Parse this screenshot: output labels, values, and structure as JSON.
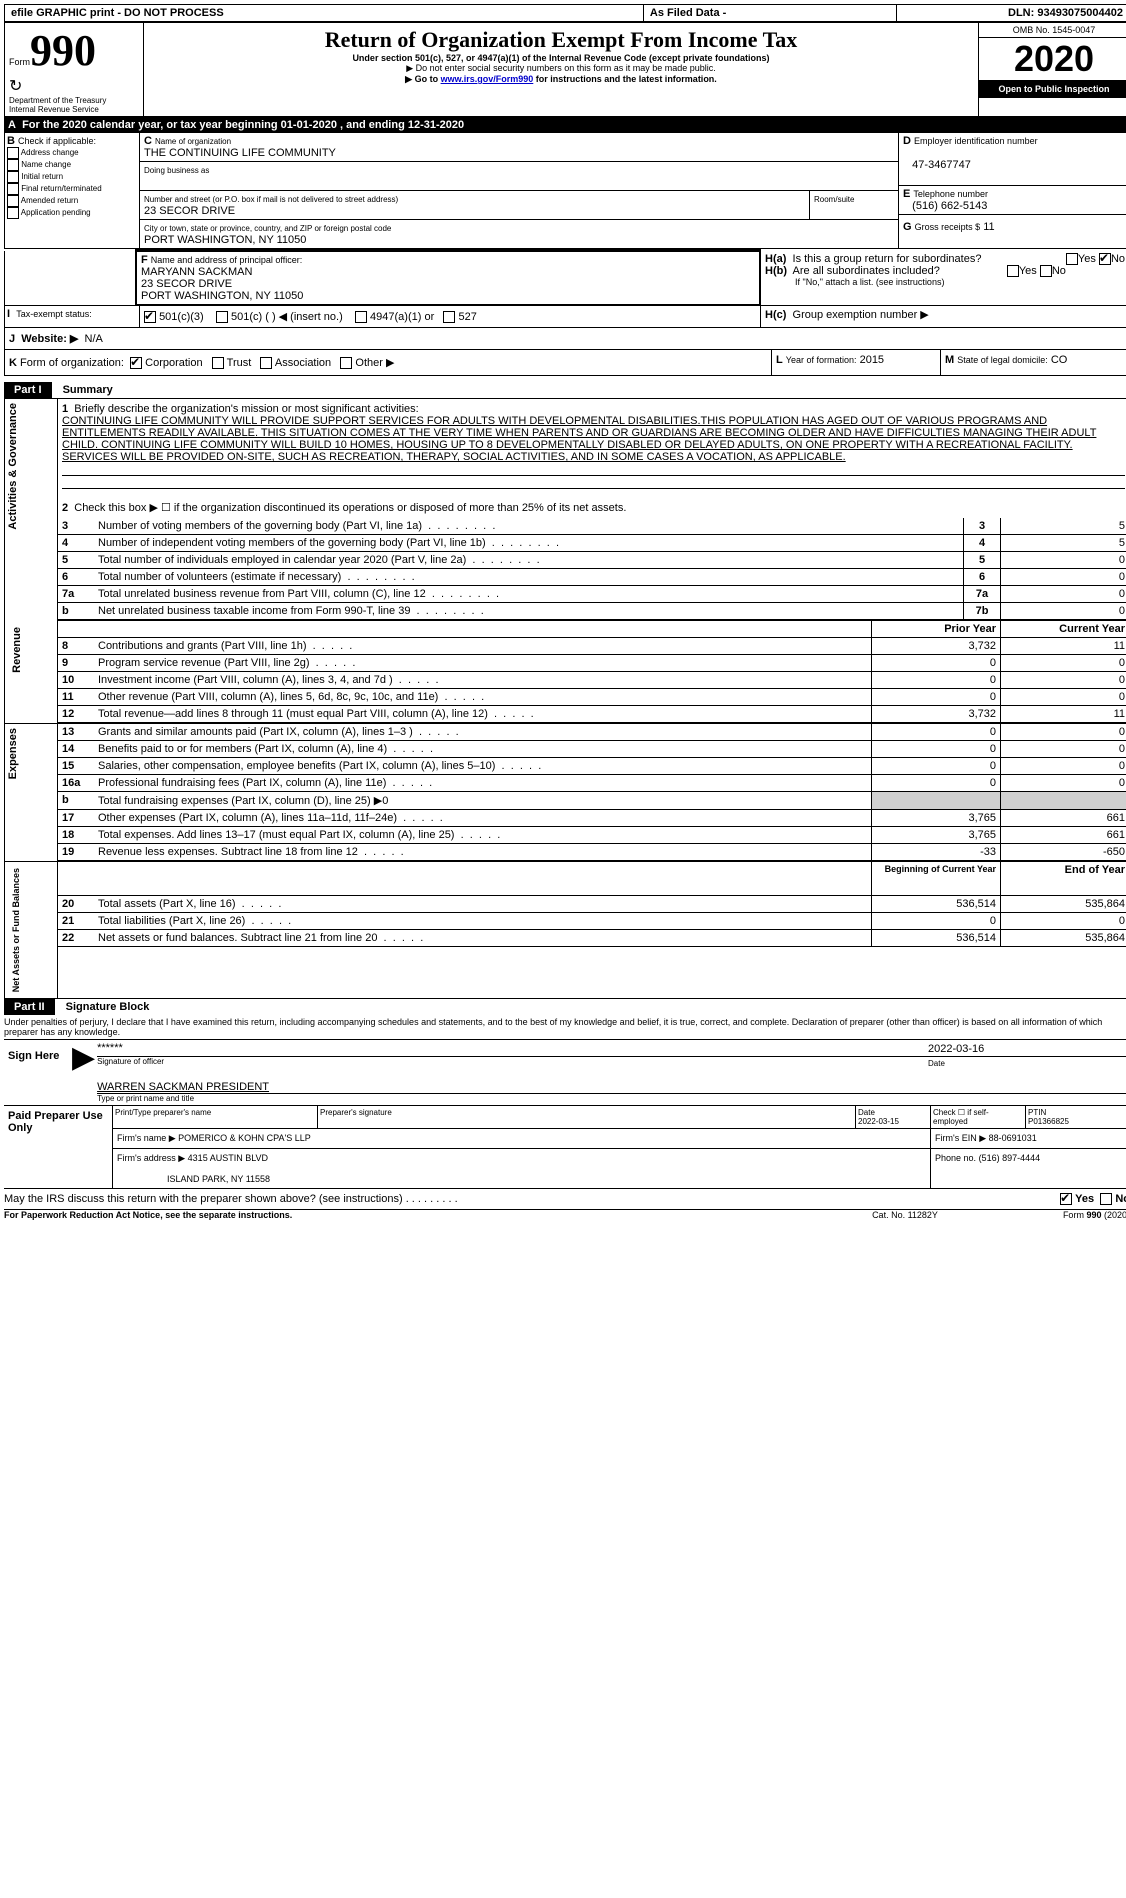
{
  "topbar": {
    "efile": "efile GRAPHIC print - DO NOT PROCESS",
    "asfiled": "As Filed Data -",
    "dln_label": "DLN:",
    "dln": "93493075004402"
  },
  "header": {
    "form_label": "Form",
    "form_num": "990",
    "dept": "Department of the Treasury",
    "irs": "Internal Revenue Service",
    "title": "Return of Organization Exempt From Income Tax",
    "subtitle": "Under section 501(c), 527, or 4947(a)(1) of the Internal Revenue Code (except private foundations)",
    "note1": "▶ Do not enter social security numbers on this form as it may be made public.",
    "note2_pre": "▶ Go to ",
    "note2_link": "www.irs.gov/Form990",
    "note2_post": " for instructions and the latest information.",
    "omb": "OMB No. 1545-0047",
    "year": "2020",
    "open": "Open to Public Inspection"
  },
  "A": {
    "text_pre": "For the 2020 calendar year, or tax year beginning ",
    "begin": "01-01-2020",
    "mid": " , and ending ",
    "end": "12-31-2020"
  },
  "B": {
    "label": "Check if applicable:",
    "opts": [
      "Address change",
      "Name change",
      "Initial return",
      "Final return/terminated",
      "Amended return",
      "Application pending"
    ]
  },
  "C": {
    "name_label": "Name of organization",
    "name": "THE CONTINUING LIFE COMMUNITY",
    "dba_label": "Doing business as",
    "street_label": "Number and street (or P.O. box if mail is not delivered to street address)",
    "room_label": "Room/suite",
    "street": "23 SECOR DRIVE",
    "city_label": "City or town, state or province, country, and ZIP or foreign postal code",
    "city": "PORT WASHINGTON, NY  11050"
  },
  "D": {
    "label": "Employer identification number",
    "val": "47-3467747"
  },
  "E": {
    "label": "Telephone number",
    "val": "(516) 662-5143"
  },
  "G": {
    "label": "Gross receipts $",
    "val": "11"
  },
  "F": {
    "label": "Name and address of principal officer:",
    "name": "MARYANN SACKMAN",
    "street": "23 SECOR DRIVE",
    "city": "PORT WASHINGTON, NY  11050"
  },
  "H": {
    "a": "Is this a group return for subordinates?",
    "b": "Are all subordinates included?",
    "b_note": "If \"No,\" attach a list. (see instructions)",
    "c": "Group exemption number ▶",
    "yes": "Yes",
    "no": "No"
  },
  "I": {
    "label": "Tax-exempt status:",
    "o1": "501(c)(3)",
    "o2": "501(c) (  ) ◀ (insert no.)",
    "o3": "4947(a)(1) or",
    "o4": "527"
  },
  "J": {
    "label": "Website: ▶",
    "val": "N/A"
  },
  "K": {
    "label": "Form of organization:",
    "opts": [
      "Corporation",
      "Trust",
      "Association",
      "Other ▶"
    ]
  },
  "L": {
    "label": "Year of formation:",
    "val": "2015"
  },
  "M": {
    "label": "State of legal domicile:",
    "val": "CO"
  },
  "partI": {
    "num": "Part I",
    "title": "Summary"
  },
  "summary": {
    "q1_label": "Briefly describe the organization's mission or most significant activities:",
    "q1_text": "CONTINUING LIFE COMMUNITY WILL PROVIDE SUPPORT SERVICES FOR ADULTS WITH DEVELOPMENTAL DISABILITIES.THIS POPULATION HAS AGED OUT OF VARIOUS PROGRAMS AND ENTITLEMENTS READILY AVAILABLE. THIS SITUATION COMES AT THE VERY TIME WHEN PARENTS AND OR GUARDIANS ARE BECOMING OLDER AND HAVE DIFFICULTIES MANAGING THEIR ADULT CHILD. CONTINUING LIFE COMMUNITY WILL BUILD 10 HOMES, HOUSING UP TO 8 DEVELOPMENTALLY DISABLED OR DELAYED ADULTS, ON ONE PROPERTY WITH A RECREATIONAL FACILITY. SERVICES WILL BE PROVIDED ON-SITE, SUCH AS RECREATION, THERAPY, SOCIAL ACTIVITIES, AND IN SOME CASES A VOCATION, AS APPLICABLE.",
    "q2": "Check this box ▶ ☐ if the organization discontinued its operations or disposed of more than 25% of its net assets.",
    "rows_ag": [
      {
        "n": "3",
        "t": "Number of voting members of the governing body (Part VI, line 1a)",
        "box": "3",
        "v": "5"
      },
      {
        "n": "4",
        "t": "Number of independent voting members of the governing body (Part VI, line 1b)",
        "box": "4",
        "v": "5"
      },
      {
        "n": "5",
        "t": "Total number of individuals employed in calendar year 2020 (Part V, line 2a)",
        "box": "5",
        "v": "0"
      },
      {
        "n": "6",
        "t": "Total number of volunteers (estimate if necessary)",
        "box": "6",
        "v": "0"
      },
      {
        "n": "7a",
        "t": "Total unrelated business revenue from Part VIII, column (C), line 12",
        "box": "7a",
        "v": "0"
      },
      {
        "n": "b",
        "t": "Net unrelated business taxable income from Form 990-T, line 39",
        "box": "7b",
        "v": "0"
      }
    ],
    "col_prior": "Prior Year",
    "col_curr": "Current Year",
    "revenue": [
      {
        "n": "8",
        "t": "Contributions and grants (Part VIII, line 1h)",
        "p": "3,732",
        "c": "11"
      },
      {
        "n": "9",
        "t": "Program service revenue (Part VIII, line 2g)",
        "p": "0",
        "c": "0"
      },
      {
        "n": "10",
        "t": "Investment income (Part VIII, column (A), lines 3, 4, and 7d )",
        "p": "0",
        "c": "0"
      },
      {
        "n": "11",
        "t": "Other revenue (Part VIII, column (A), lines 5, 6d, 8c, 9c, 10c, and 11e)",
        "p": "0",
        "c": "0"
      },
      {
        "n": "12",
        "t": "Total revenue—add lines 8 through 11 (must equal Part VIII, column (A), line 12)",
        "p": "3,732",
        "c": "11"
      }
    ],
    "expenses": [
      {
        "n": "13",
        "t": "Grants and similar amounts paid (Part IX, column (A), lines 1–3 )",
        "p": "0",
        "c": "0"
      },
      {
        "n": "14",
        "t": "Benefits paid to or for members (Part IX, column (A), line 4)",
        "p": "0",
        "c": "0"
      },
      {
        "n": "15",
        "t": "Salaries, other compensation, employee benefits (Part IX, column (A), lines 5–10)",
        "p": "0",
        "c": "0"
      },
      {
        "n": "16a",
        "t": "Professional fundraising fees (Part IX, column (A), line 11e)",
        "p": "0",
        "c": "0"
      },
      {
        "n": "b",
        "t": "Total fundraising expenses (Part IX, column (D), line 25) ▶0",
        "p": "",
        "c": ""
      },
      {
        "n": "17",
        "t": "Other expenses (Part IX, column (A), lines 11a–11d, 11f–24e)",
        "p": "3,765",
        "c": "661"
      },
      {
        "n": "18",
        "t": "Total expenses. Add lines 13–17 (must equal Part IX, column (A), line 25)",
        "p": "3,765",
        "c": "661"
      },
      {
        "n": "19",
        "t": "Revenue less expenses. Subtract line 18 from line 12",
        "p": "-33",
        "c": "-650"
      }
    ],
    "col_begin": "Beginning of Current Year",
    "col_end": "End of Year",
    "netassets": [
      {
        "n": "20",
        "t": "Total assets (Part X, line 16)",
        "p": "536,514",
        "c": "535,864"
      },
      {
        "n": "21",
        "t": "Total liabilities (Part X, line 26)",
        "p": "0",
        "c": "0"
      },
      {
        "n": "22",
        "t": "Net assets or fund balances. Subtract line 21 from line 20",
        "p": "536,514",
        "c": "535,864"
      }
    ],
    "side_ag": "Activities & Governance",
    "side_rev": "Revenue",
    "side_exp": "Expenses",
    "side_na": "Net Assets or Fund Balances"
  },
  "partII": {
    "num": "Part II",
    "title": "Signature Block"
  },
  "sig": {
    "perjury": "Under penalties of perjury, I declare that I have examined this return, including accompanying schedules and statements, and to the best of my knowledge and belief, it is true, correct, and complete. Declaration of preparer (other than officer) is based on all information of which preparer has any knowledge.",
    "sign_here": "Sign Here",
    "stars": "******",
    "sig_officer": "Signature of officer",
    "date_label": "Date",
    "date": "2022-03-16",
    "name_title": "WARREN SACKMAN  PRESIDENT",
    "type_print": "Type or print name and title",
    "paid": "Paid Preparer Use Only",
    "prep_name_label": "Print/Type preparer's name",
    "prep_sig_label": "Preparer's signature",
    "prep_date_label": "Date",
    "prep_date": "2022-03-15",
    "check_self": "Check ☐ if self-employed",
    "ptin_label": "PTIN",
    "ptin": "P01366825",
    "firm_name_label": "Firm's name    ▶",
    "firm_name": "POMERICO & KOHN CPA'S LLP",
    "firm_ein_label": "Firm's EIN ▶",
    "firm_ein": "88-0691031",
    "firm_addr_label": "Firm's address ▶",
    "firm_addr1": "4315 AUSTIN BLVD",
    "firm_addr2": "ISLAND PARK, NY  11558",
    "phone_label": "Phone no.",
    "phone": "(516) 897-4444",
    "discuss": "May the IRS discuss this return with the preparer shown above? (see instructions)",
    "paperwork": "For Paperwork Reduction Act Notice, see the separate instructions.",
    "cat": "Cat. No. 11282Y",
    "form_foot": "Form 990 (2020)"
  }
}
